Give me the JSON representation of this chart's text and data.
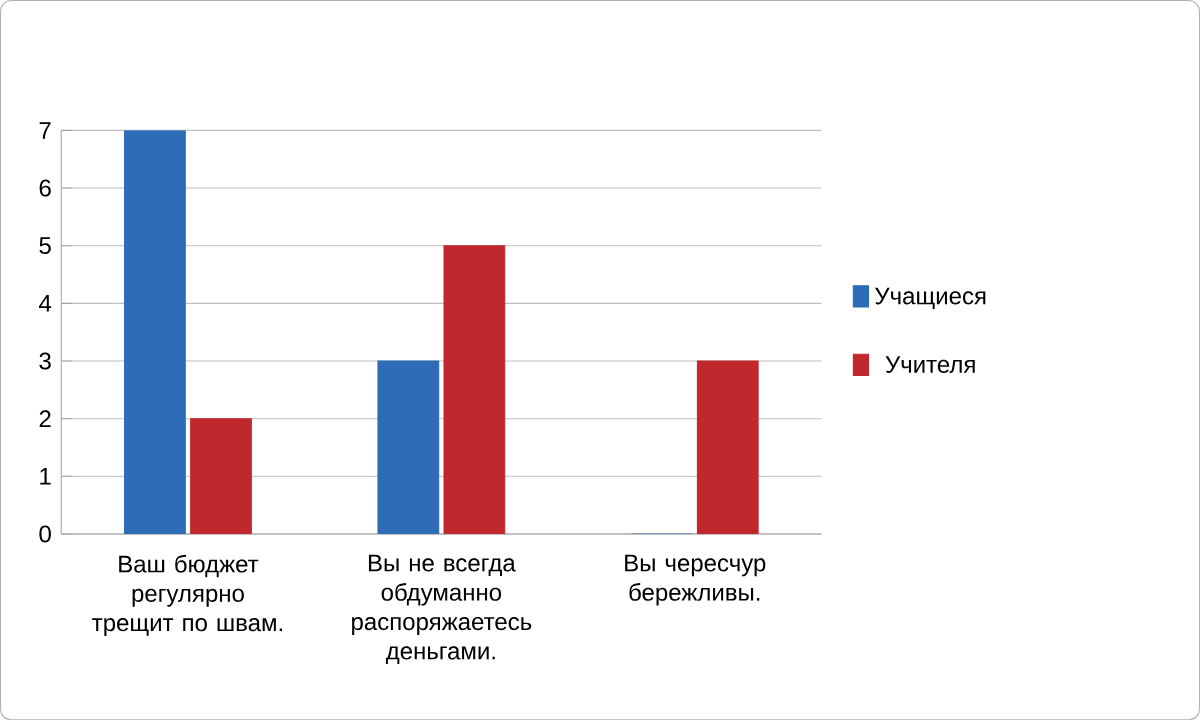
{
  "chart_data": {
    "type": "bar",
    "categories": [
      "Ваш бюджет регулярно трещит по швам.",
      "Вы не всегда обдуманно распоряжаетесь деньгами.",
      "Вы чересчур бережливы."
    ],
    "series": [
      {
        "name": "Учащиеся",
        "color": "#2f6cb8",
        "values": [
          7,
          3,
          0
        ]
      },
      {
        "name": "Учителя",
        "color": "#c0282e",
        "values": [
          2,
          5,
          3
        ]
      }
    ],
    "ylim": [
      0,
      7
    ],
    "yticks": [
      0,
      1,
      2,
      3,
      4,
      5,
      6,
      7
    ],
    "grid": "y",
    "legend": "right"
  }
}
